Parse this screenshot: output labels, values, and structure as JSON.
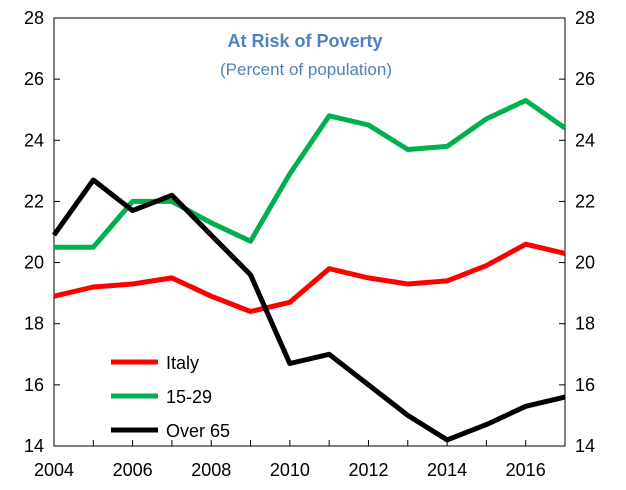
{
  "chart_data": {
    "type": "line",
    "title": "At Risk of Poverty",
    "subtitle": "(Percent of population)",
    "x": [
      2004,
      2005,
      2006,
      2007,
      2008,
      2009,
      2010,
      2011,
      2012,
      2013,
      2014,
      2015,
      2016,
      2017
    ],
    "xlim": [
      2004,
      2017
    ],
    "ylim": [
      14,
      28
    ],
    "xticks": [
      "2004",
      "2006",
      "2008",
      "2010",
      "2012",
      "2014",
      "2016"
    ],
    "yticks": [
      "14",
      "16",
      "18",
      "20",
      "22",
      "24",
      "26",
      "28"
    ],
    "y_axis_right": true,
    "grid": false,
    "legend_position": "bottom-left",
    "title_color": "#4f81bd",
    "series": [
      {
        "name": "Italy",
        "color": "#ff0000",
        "values": [
          18.9,
          19.2,
          19.3,
          19.5,
          18.9,
          18.4,
          18.7,
          19.8,
          19.5,
          19.3,
          19.4,
          19.9,
          20.6,
          20.3
        ]
      },
      {
        "name": "15-29",
        "color": "#00b050",
        "values": [
          20.5,
          20.5,
          22.0,
          22.0,
          21.3,
          20.7,
          22.9,
          24.8,
          24.5,
          23.7,
          23.8,
          24.7,
          25.3,
          24.4
        ]
      },
      {
        "name": "Over 65",
        "color": "#000000",
        "values": [
          20.9,
          22.7,
          21.7,
          22.2,
          20.9,
          19.6,
          16.7,
          17.0,
          16.0,
          15.0,
          14.2,
          14.7,
          15.3,
          15.6
        ]
      }
    ]
  }
}
